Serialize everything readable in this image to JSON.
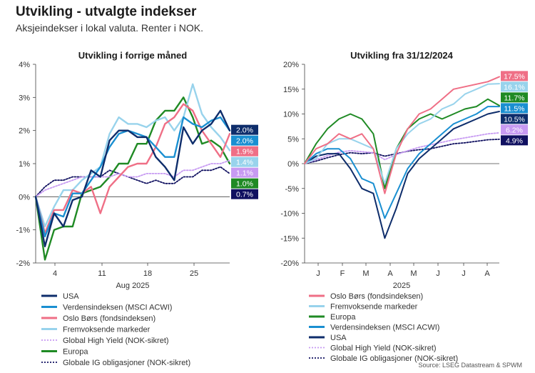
{
  "title": "Utvikling - utvalgte indekser",
  "subtitle": "Aksjeindekser i lokal valuta. Renter i NOK.",
  "source": "Source: LSEG Datastream & SPWM",
  "chart_data": [
    {
      "type": "line",
      "title": "Utvikling i forrige måned",
      "xlabel": "Aug 2025",
      "x_ticks": [
        "4",
        "11",
        "18",
        "25"
      ],
      "x": [
        "31.07",
        "01.08",
        "04.08",
        "05.08",
        "06.08",
        "07.08",
        "08.08",
        "11.08",
        "12.08",
        "13.08",
        "14.08",
        "15.08",
        "18.08",
        "19.08",
        "20.08",
        "21.08",
        "22.08",
        "25.08",
        "26.08",
        "27.08",
        "28.08",
        "29.08"
      ],
      "y_ticks": [
        "4%",
        "3%",
        "2%",
        "1%",
        "0%",
        "-1%",
        "-2%"
      ],
      "ylim": [
        -2,
        4
      ],
      "unit": "%",
      "grid": false,
      "series": [
        {
          "name": "USA",
          "color": "#0e2d6b",
          "dash": false,
          "end_label": "2.0%",
          "values": [
            0.0,
            -1.5,
            -0.5,
            -0.9,
            -0.1,
            0.0,
            0.8,
            0.6,
            1.7,
            2.0,
            2.0,
            1.8,
            1.8,
            1.2,
            0.9,
            0.5,
            2.1,
            1.6,
            2.0,
            2.2,
            2.6,
            2.0
          ]
        },
        {
          "name": "Verdensindeksen (MSCI ACWI)",
          "color": "#1a8fd1",
          "dash": false,
          "end_label": "2.0%",
          "values": [
            0.0,
            -1.2,
            -0.5,
            -0.6,
            0.1,
            0.1,
            0.5,
            0.9,
            1.5,
            1.9,
            2.0,
            1.9,
            1.8,
            1.5,
            1.2,
            1.2,
            2.4,
            2.2,
            2.1,
            2.3,
            2.4,
            2.0
          ]
        },
        {
          "name": "Oslo Børs (fondsindeksen)",
          "color": "#ef6f86",
          "dash": false,
          "end_label": "1.9%",
          "values": [
            0.0,
            -1.1,
            -0.4,
            -0.4,
            0.2,
            0.1,
            0.3,
            -0.5,
            0.3,
            0.6,
            0.9,
            1.0,
            1.0,
            1.5,
            2.2,
            2.4,
            2.8,
            2.6,
            2.0,
            1.6,
            1.2,
            1.9
          ]
        },
        {
          "name": "Fremvoksende markeder",
          "color": "#98d3ec",
          "dash": false,
          "end_label": "1.4%",
          "values": [
            0.0,
            -0.9,
            -0.3,
            0.2,
            0.2,
            0.5,
            0.7,
            0.9,
            1.9,
            2.4,
            2.2,
            2.2,
            2.1,
            2.3,
            2.4,
            2.0,
            2.4,
            3.4,
            2.5,
            2.1,
            1.8,
            1.4
          ]
        },
        {
          "name": "Global High Yield (NOK-sikret)",
          "color": "#c79af2",
          "dash": true,
          "end_label": "1.1%",
          "values": [
            0.0,
            0.2,
            0.3,
            0.4,
            0.5,
            0.6,
            0.6,
            0.6,
            0.6,
            0.7,
            0.6,
            0.6,
            0.7,
            0.7,
            0.7,
            0.6,
            0.8,
            0.8,
            0.9,
            1.0,
            1.0,
            1.1
          ]
        },
        {
          "name": "Europa",
          "color": "#1f8a24",
          "dash": false,
          "end_label": "1.0%",
          "values": [
            0.0,
            -1.9,
            -1.0,
            -0.9,
            -0.9,
            0.1,
            0.2,
            0.3,
            0.6,
            1.0,
            1.0,
            1.6,
            1.6,
            2.3,
            2.6,
            2.6,
            3.0,
            2.4,
            1.6,
            1.7,
            1.5,
            1.0
          ]
        },
        {
          "name": "Globale IG obligasjoner (NOK-sikret)",
          "color": "#101060",
          "dash": true,
          "end_label": "0.7%",
          "values": [
            0.0,
            0.3,
            0.5,
            0.5,
            0.6,
            0.6,
            0.6,
            0.6,
            0.8,
            0.7,
            0.6,
            0.5,
            0.4,
            0.5,
            0.4,
            0.4,
            0.6,
            0.6,
            0.8,
            0.8,
            0.9,
            0.7
          ]
        }
      ],
      "legend_order": [
        "USA",
        "Verdensindeksen (MSCI ACWI)",
        "Oslo Børs (fondsindeksen)",
        "Fremvoksende markeder",
        "Global High Yield (NOK-sikret)",
        "Europa",
        "Globale IG obligasjoner (NOK-sikret)"
      ],
      "legend": "bottom"
    },
    {
      "type": "line",
      "title": "Utvikling fra 31/12/2024",
      "xlabel": "2025",
      "x_ticks": [
        "J",
        "F",
        "M",
        "A",
        "M",
        "J",
        "J",
        "A"
      ],
      "x": [
        "31.12.24",
        "15.01",
        "31.01",
        "15.02",
        "28.02",
        "15.03",
        "31.03",
        "07.04",
        "15.04",
        "30.04",
        "15.05",
        "31.05",
        "15.06",
        "30.06",
        "15.07",
        "31.07",
        "15.08",
        "29.08"
      ],
      "y_ticks": [
        "20%",
        "15%",
        "10%",
        "5%",
        "0%",
        "-5%",
        "-10%",
        "-15%",
        "-20%"
      ],
      "ylim": [
        -20,
        20
      ],
      "unit": "%",
      "grid": false,
      "series": [
        {
          "name": "Oslo Børs (fondsindeksen)",
          "color": "#ef6f86",
          "dash": false,
          "end_label": "17.5%",
          "values": [
            0.0,
            3.0,
            4.0,
            6.0,
            5.0,
            6.0,
            3.0,
            -6.0,
            2.0,
            7.0,
            10.0,
            11.0,
            13.0,
            15.0,
            15.5,
            16.0,
            16.5,
            17.5
          ]
        },
        {
          "name": "Fremvoksende markeder",
          "color": "#98d3ec",
          "dash": false,
          "end_label": "16.1%",
          "values": [
            0.0,
            1.0,
            4.0,
            5.0,
            5.0,
            4.0,
            3.0,
            -4.0,
            3.0,
            6.0,
            8.0,
            9.0,
            11.0,
            12.0,
            14.0,
            15.0,
            16.0,
            16.1
          ]
        },
        {
          "name": "Europa",
          "color": "#1f8a24",
          "dash": false,
          "end_label": "11.7%",
          "values": [
            0.0,
            4.0,
            7.0,
            9.0,
            10.0,
            9.0,
            6.0,
            -5.0,
            3.0,
            7.0,
            9.0,
            10.0,
            9.0,
            10.0,
            11.0,
            11.5,
            13.0,
            11.7
          ]
        },
        {
          "name": "Verdensindeksen (MSCI ACWI)",
          "color": "#1a8fd1",
          "dash": false,
          "end_label": "11.5%",
          "values": [
            0.0,
            2.0,
            3.0,
            3.0,
            1.0,
            -3.0,
            -4.0,
            -11.0,
            -6.0,
            -1.0,
            2.0,
            4.0,
            6.0,
            8.0,
            9.0,
            10.0,
            11.5,
            11.5
          ]
        },
        {
          "name": "USA",
          "color": "#0e2d6b",
          "dash": false,
          "end_label": "10.5%",
          "values": [
            0.0,
            1.5,
            2.0,
            2.0,
            -1.0,
            -5.0,
            -6.0,
            -15.0,
            -9.0,
            -2.0,
            1.0,
            3.0,
            5.0,
            7.0,
            8.0,
            9.0,
            10.0,
            10.5
          ]
        },
        {
          "name": "Global High Yield (NOK-sikret)",
          "color": "#c79af2",
          "dash": true,
          "end_label": "6.2%",
          "values": [
            0.0,
            0.8,
            1.6,
            2.3,
            2.6,
            2.4,
            2.2,
            0.8,
            1.8,
            2.6,
            3.3,
            3.8,
            4.3,
            4.8,
            5.2,
            5.6,
            6.0,
            6.2
          ]
        },
        {
          "name": "Globale IG obligasjoner (NOK-sikret)",
          "color": "#101060",
          "dash": true,
          "end_label": "4.9%",
          "values": [
            0.0,
            0.5,
            1.2,
            1.8,
            2.2,
            2.0,
            2.2,
            1.5,
            2.0,
            2.5,
            2.8,
            3.0,
            3.5,
            4.0,
            4.2,
            4.5,
            4.8,
            4.9
          ]
        }
      ],
      "legend_order": [
        "Oslo Børs (fondsindeksen)",
        "Fremvoksende markeder",
        "Europa",
        "Verdensindeksen (MSCI ACWI)",
        "USA",
        "Global High Yield (NOK-sikret)",
        "Globale IG obligasjoner (NOK-sikret)"
      ],
      "legend": "bottom"
    }
  ]
}
